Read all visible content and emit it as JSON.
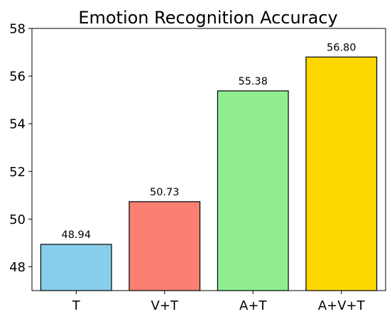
{
  "chart_data": {
    "type": "bar",
    "title": "Emotion Recognition Accuracy",
    "xlabel": "",
    "ylabel": "",
    "categories": [
      "T",
      "V+T",
      "A+T",
      "A+V+T"
    ],
    "values": [
      48.94,
      50.73,
      55.38,
      56.8
    ],
    "value_labels": [
      "48.94",
      "50.73",
      "55.38",
      "56.80"
    ],
    "colors": [
      "#87CEEB",
      "#FA8072",
      "#90EE90",
      "#FFD700"
    ],
    "edge_color": "#000000",
    "ylim": [
      47,
      58
    ],
    "yticks": [
      48,
      50,
      52,
      54,
      56,
      58
    ],
    "grid": false,
    "legend": "none"
  }
}
